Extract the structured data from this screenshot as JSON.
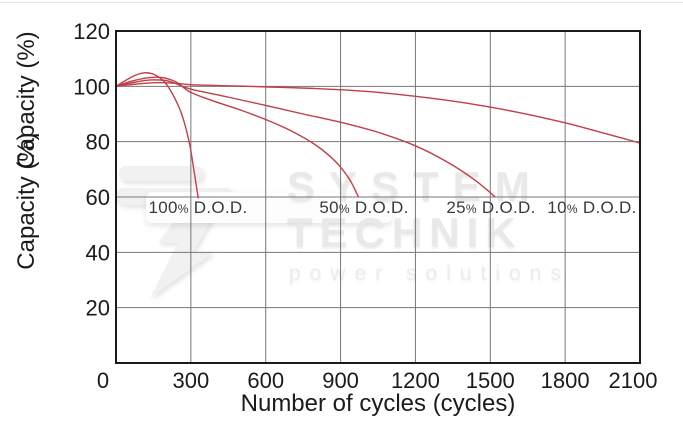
{
  "watermark": {
    "line1": "SYSTEM",
    "line2": "TECHNIK",
    "line3": "power solutions"
  },
  "chart_data": {
    "type": "line",
    "title": "",
    "xlabel": "Number of cycles (cycles)",
    "ylabel": "Capacity (%)",
    "xlim": [
      0,
      2100
    ],
    "ylim": [
      0,
      120
    ],
    "x_ticks": [
      0,
      300,
      600,
      900,
      1200,
      1500,
      1800,
      2100
    ],
    "y_ticks": [
      20,
      40,
      60,
      80,
      100,
      120
    ],
    "grid": true,
    "legend_position": "inline-annotations",
    "colors": {
      "line": "#bf4048",
      "grid": "#777777",
      "axis": "#1b1b1b",
      "annotation": "#3a3a3a",
      "watermark": "#e9e9e9"
    },
    "series": [
      {
        "name": "100% D.O.D.",
        "points": [
          [
            0,
            100
          ],
          [
            40,
            102.2
          ],
          [
            80,
            104.1
          ],
          [
            115,
            104.9
          ],
          [
            150,
            104.4
          ],
          [
            185,
            102.4
          ],
          [
            208,
            100
          ],
          [
            235,
            95.8
          ],
          [
            265,
            89.5
          ],
          [
            293,
            80
          ],
          [
            310,
            71
          ],
          [
            322,
            64
          ],
          [
            330,
            59.5
          ]
        ]
      },
      {
        "name": "50% D.O.D.",
        "points": [
          [
            0,
            100
          ],
          [
            60,
            101.8
          ],
          [
            120,
            103
          ],
          [
            180,
            103.2
          ],
          [
            240,
            101.6
          ],
          [
            300,
            97.8
          ],
          [
            400,
            94.4
          ],
          [
            500,
            91.4
          ],
          [
            600,
            88
          ],
          [
            700,
            84
          ],
          [
            800,
            78.8
          ],
          [
            880,
            72.8
          ],
          [
            935,
            66.5
          ],
          [
            972,
            60
          ]
        ]
      },
      {
        "name": "25% D.O.D.",
        "points": [
          [
            0,
            100
          ],
          [
            70,
            101.4
          ],
          [
            140,
            102.3
          ],
          [
            210,
            101.9
          ],
          [
            300,
            99
          ],
          [
            450,
            96.1
          ],
          [
            600,
            93.1
          ],
          [
            750,
            90
          ],
          [
            900,
            87
          ],
          [
            1050,
            83.4
          ],
          [
            1200,
            78.5
          ],
          [
            1330,
            72.5
          ],
          [
            1440,
            66
          ],
          [
            1520,
            60
          ]
        ]
      },
      {
        "name": "10% D.O.D.",
        "points": [
          [
            0,
            100
          ],
          [
            80,
            100.8
          ],
          [
            160,
            101.3
          ],
          [
            240,
            101.1
          ],
          [
            300,
            100.6
          ],
          [
            450,
            100.2
          ],
          [
            600,
            99.8
          ],
          [
            800,
            99.2
          ],
          [
            1000,
            98.2
          ],
          [
            1200,
            96.4
          ],
          [
            1400,
            94
          ],
          [
            1600,
            90.8
          ],
          [
            1800,
            86.8
          ],
          [
            1950,
            83.2
          ],
          [
            2100,
            79.5
          ]
        ]
      }
    ],
    "annotations": [
      {
        "num": "100",
        "pct": "%",
        "suffix": "D.O.D."
      },
      {
        "num": "50",
        "pct": "%",
        "suffix": "D.O.D."
      },
      {
        "num": "25",
        "pct": "%",
        "suffix": "D.O.D."
      },
      {
        "num": "10",
        "pct": "%",
        "suffix": "D.O.D."
      }
    ]
  }
}
